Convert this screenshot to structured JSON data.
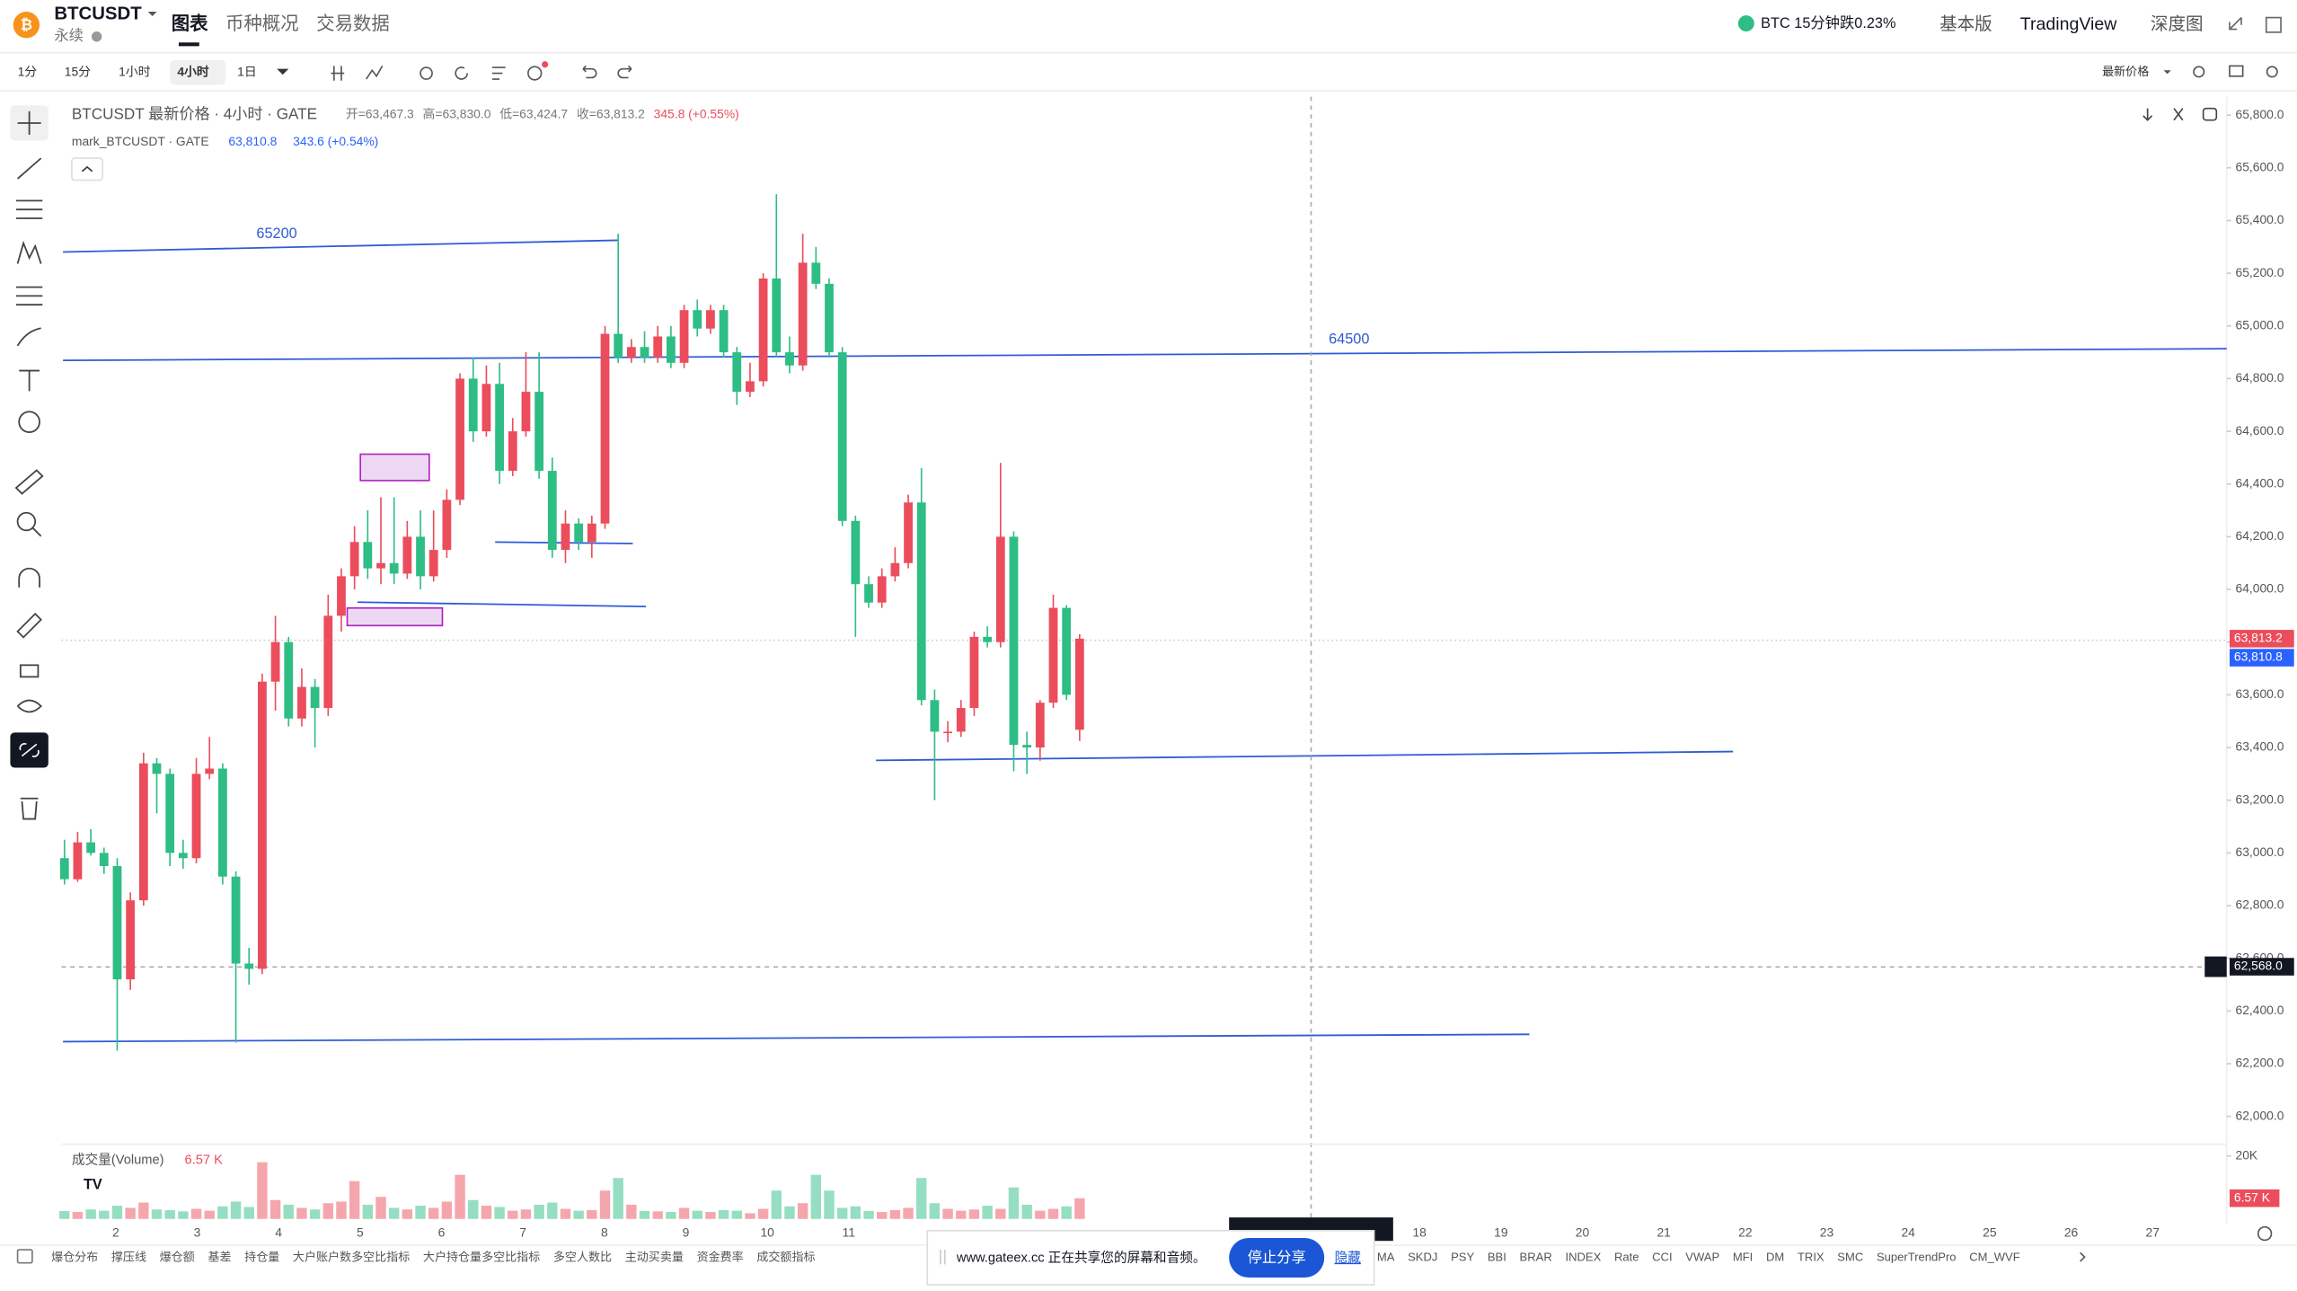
{
  "header": {
    "symbol": "BTCUSDT",
    "contract": "永续",
    "tabs": [
      "图表",
      "币种概况",
      "交易数据"
    ],
    "ticker": "BTC 15分钟跌0.23%",
    "links": [
      "基本版",
      "TradingView",
      "深度图"
    ]
  },
  "toolbar": {
    "intervals": [
      "1分",
      "15分",
      "1小时",
      "4小时",
      "1日"
    ],
    "selected": 3,
    "price_type": "最新价格"
  },
  "legend": {
    "title": "BTCUSDT 最新价格 · 4小时 · GATE",
    "ohlc": [
      "开=63,467.3",
      "高=63,830.0",
      "低=63,424.7",
      "收=63,813.2",
      "345.8 (+0.55%)"
    ],
    "mark_title": "mark_BTCUSDT · GATE",
    "mark_price": "63,810.8",
    "mark_change": "343.6 (+0.54%)",
    "volume_title": "成交量(Volume)",
    "volume_value": "6.57 K"
  },
  "drawings": [
    "65200",
    "64500"
  ],
  "chart": {
    "type": "candlestick",
    "up_color": "#eb4d5c",
    "down_color": "#2ebd85",
    "grid": false,
    "ylim": [
      61900,
      65870
    ],
    "yticks": [
      {
        "value": 62000,
        "label": "62,000.0"
      },
      {
        "value": 62200,
        "label": "62,200.0"
      },
      {
        "value": 62400,
        "label": "62,400.0"
      },
      {
        "value": 62600,
        "label": "62,600.0"
      },
      {
        "value": 62800,
        "label": "62,800.0"
      },
      {
        "value": 63000,
        "label": "63,000.0"
      },
      {
        "value": 63200,
        "label": "63,200.0"
      },
      {
        "value": 63400,
        "label": "63,400.0"
      },
      {
        "value": 63600,
        "label": "63,600.0"
      },
      {
        "value": 63800,
        "label": "63,800.0"
      },
      {
        "value": 64000,
        "label": "64,000.0"
      },
      {
        "value": 64200,
        "label": "64,200.0"
      },
      {
        "value": 64400,
        "label": "64,400.0"
      },
      {
        "value": 64600,
        "label": "64,600.0"
      },
      {
        "value": 64800,
        "label": "64,800.0"
      },
      {
        "value": 65000,
        "label": "65,000.0"
      },
      {
        "value": 65200,
        "label": "65,200.0"
      },
      {
        "value": 65400,
        "label": "65,400.0"
      },
      {
        "value": 65600,
        "label": "65,600.0"
      },
      {
        "value": 65800,
        "label": "65,800.0"
      }
    ],
    "date_ticks": [
      "2",
      "3",
      "4",
      "5",
      "6",
      "7",
      "8",
      "9",
      "10",
      "11"
    ],
    "date_ticks_later": [
      "18",
      "19",
      "20",
      "21",
      "22",
      "23",
      "24",
      "25",
      "26",
      "27"
    ],
    "price_tags": [
      {
        "value": 63813.2,
        "label": "63,813.2",
        "color": "#eb4d5c"
      },
      {
        "value": 63810.8,
        "label": "63,810.8",
        "color": "#2962ff"
      },
      {
        "value": 62568,
        "label": "62,568.0",
        "color": "#131722"
      }
    ],
    "candles": [
      [
        62980,
        63050,
        62880,
        62900
      ],
      [
        62900,
        63080,
        62890,
        63040
      ],
      [
        63040,
        63090,
        62990,
        63000
      ],
      [
        63000,
        63020,
        62920,
        62950
      ],
      [
        62950,
        62980,
        62250,
        62520
      ],
      [
        62520,
        62850,
        62480,
        62820
      ],
      [
        62820,
        63380,
        62800,
        63340
      ],
      [
        63340,
        63360,
        63150,
        63300
      ],
      [
        63300,
        63320,
        62950,
        63000
      ],
      [
        63000,
        63050,
        62940,
        62980
      ],
      [
        62980,
        63360,
        62960,
        63300
      ],
      [
        63300,
        63440,
        63280,
        63320
      ],
      [
        63320,
        63340,
        62880,
        62910
      ],
      [
        62910,
        62930,
        62280,
        62580
      ],
      [
        62580,
        62640,
        62500,
        62560
      ],
      [
        62560,
        63680,
        62540,
        63650
      ],
      [
        63650,
        63900,
        63540,
        63800
      ],
      [
        63800,
        63820,
        63480,
        63510
      ],
      [
        63510,
        63700,
        63480,
        63630
      ],
      [
        63630,
        63660,
        63400,
        63550
      ],
      [
        63550,
        63980,
        63520,
        63900
      ],
      [
        63900,
        64080,
        63840,
        64050
      ],
      [
        64050,
        64240,
        64000,
        64180
      ],
      [
        64180,
        64300,
        64040,
        64080
      ],
      [
        64080,
        64350,
        64020,
        64100
      ],
      [
        64100,
        64350,
        64020,
        64060
      ],
      [
        64060,
        64260,
        64040,
        64200
      ],
      [
        64200,
        64300,
        64000,
        64050
      ],
      [
        64050,
        64300,
        64030,
        64150
      ],
      [
        64150,
        64380,
        64120,
        64340
      ],
      [
        64340,
        64820,
        64320,
        64800
      ],
      [
        64800,
        64880,
        64560,
        64600
      ],
      [
        64600,
        64850,
        64580,
        64780
      ],
      [
        64780,
        64860,
        64400,
        64450
      ],
      [
        64450,
        64650,
        64430,
        64600
      ],
      [
        64600,
        64900,
        64580,
        64750
      ],
      [
        64750,
        64900,
        64420,
        64450
      ],
      [
        64450,
        64500,
        64120,
        64150
      ],
      [
        64150,
        64300,
        64100,
        64250
      ],
      [
        64250,
        64270,
        64150,
        64180
      ],
      [
        64180,
        64280,
        64120,
        64250
      ],
      [
        64250,
        65000,
        64230,
        64970
      ],
      [
        64970,
        65350,
        64860,
        64880
      ],
      [
        64880,
        64950,
        64860,
        64920
      ],
      [
        64920,
        64980,
        64860,
        64880
      ],
      [
        64880,
        65000,
        64860,
        64960
      ],
      [
        64960,
        65000,
        64840,
        64860
      ],
      [
        64860,
        65080,
        64840,
        65060
      ],
      [
        65060,
        65100,
        64960,
        64990
      ],
      [
        64990,
        65080,
        64970,
        65060
      ],
      [
        65060,
        65080,
        64880,
        64900
      ],
      [
        64900,
        64920,
        64700,
        64750
      ],
      [
        64750,
        64860,
        64730,
        64790
      ],
      [
        64790,
        65200,
        64770,
        65180
      ],
      [
        65180,
        65500,
        64880,
        64900
      ],
      [
        64900,
        64960,
        64820,
        64850
      ],
      [
        64850,
        65350,
        64830,
        65240
      ],
      [
        65240,
        65300,
        65140,
        65160
      ],
      [
        65160,
        65180,
        64880,
        64900
      ],
      [
        64900,
        64920,
        64240,
        64260
      ],
      [
        64260,
        64280,
        63820,
        64020
      ],
      [
        64020,
        64050,
        63930,
        63950
      ],
      [
        63950,
        64080,
        63930,
        64050
      ],
      [
        64050,
        64160,
        64030,
        64100
      ],
      [
        64100,
        64360,
        64080,
        64330
      ],
      [
        64330,
        64460,
        63560,
        63580
      ],
      [
        63580,
        63620,
        63200,
        63460
      ],
      [
        63460,
        63500,
        63420,
        63460
      ],
      [
        63460,
        63580,
        63440,
        63550
      ],
      [
        63550,
        63840,
        63520,
        63820
      ],
      [
        63820,
        63860,
        63780,
        63800
      ],
      [
        63800,
        64480,
        63780,
        64200
      ],
      [
        64200,
        64220,
        63310,
        63410
      ],
      [
        63410,
        63460,
        63300,
        63400
      ],
      [
        63400,
        63580,
        63350,
        63570
      ],
      [
        63570,
        63980,
        63550,
        63930
      ],
      [
        63930,
        63940,
        63580,
        63600
      ],
      [
        63467.3,
        63830.0,
        63424.7,
        63813.2
      ]
    ],
    "volume_ylim": [
      0,
      20000
    ],
    "volume_ticks": [
      {
        "value": 20000,
        "label": "20K"
      }
    ],
    "volume_tag": {
      "value": 6570,
      "label": "6.57 K"
    },
    "volumes": [
      2500,
      2200,
      3000,
      2600,
      4200,
      3500,
      5200,
      3000,
      2800,
      2400,
      3200,
      2600,
      4000,
      5500,
      3800,
      18000,
      6000,
      4500,
      3500,
      3000,
      5000,
      5500,
      12000,
      4500,
      7000,
      3500,
      3000,
      4200,
      3500,
      5500,
      14000,
      6000,
      4200,
      3800,
      2600,
      3000,
      4500,
      5200,
      3200,
      2600,
      2800,
      9000,
      13000,
      4500,
      2500,
      2400,
      2200,
      3500,
      2600,
      2200,
      2800,
      2600,
      1800,
      3200,
      9000,
      4000,
      5000,
      14000,
      9000,
      3500,
      4000,
      2500,
      2200,
      2800,
      3500,
      13000,
      5000,
      3200,
      2600,
      3000,
      4200,
      3200,
      10000,
      4500,
      2600,
      3200,
      4000,
      6570
    ]
  },
  "indicators_left": [
    "爆仓分布",
    "撑压线",
    "爆仓额",
    "基差",
    "持仓量",
    "大户账户数多空比指标",
    "大户持仓量多空比指标",
    "多空人数比",
    "主动买卖量",
    "资金费率",
    "成交额指标"
  ],
  "indicators_right": [
    "MA",
    "SKDJ",
    "PSY",
    "BBI",
    "BRAR",
    "INDEX",
    "Rate",
    "CCI",
    "VWAP",
    "MFI",
    "DM",
    "TRIX",
    "SMC",
    "SuperTrendPro",
    "CM_WVF"
  ],
  "share_banner": {
    "message": "www.gateex.cc 正在共享您的屏幕和音频。",
    "stop": "停止分享",
    "hide": "隐藏"
  }
}
